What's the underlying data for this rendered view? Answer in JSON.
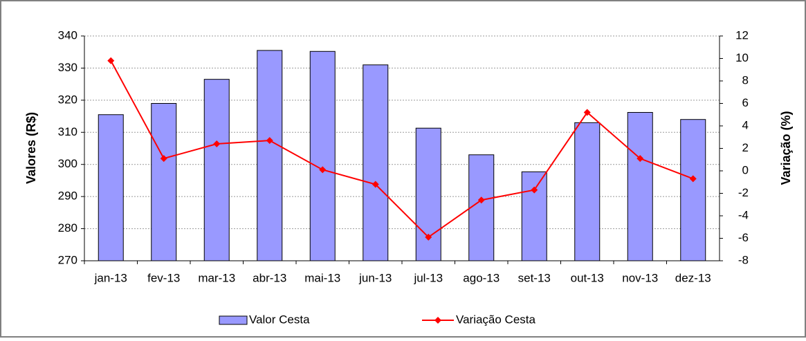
{
  "chart_data": {
    "type": "bar",
    "categories": [
      "jan-13",
      "fev-13",
      "mar-13",
      "abr-13",
      "mai-13",
      "jun-13",
      "jul-13",
      "ago-13",
      "set-13",
      "out-13",
      "nov-13",
      "dez-13"
    ],
    "series": [
      {
        "name": "Valor Cesta",
        "type": "bar",
        "color": "#9999ff",
        "values": [
          315.5,
          319,
          326.5,
          335.5,
          335.2,
          331,
          311.3,
          303,
          297.7,
          313,
          316.2,
          314
        ]
      },
      {
        "name": "Variação Cesta",
        "type": "line",
        "axis": "y2",
        "color": "#ff0000",
        "values": [
          9.8,
          1.1,
          2.4,
          2.7,
          0.1,
          -1.2,
          -5.9,
          -2.6,
          -1.7,
          5.2,
          1.1,
          -0.7
        ]
      }
    ],
    "y_label": "Valores (R$)",
    "y2_label": "Variação (%)",
    "ylim": [
      270,
      340
    ],
    "yticks": [
      270,
      280,
      290,
      300,
      310,
      320,
      330,
      340
    ],
    "y2lim": [
      -8,
      12
    ],
    "y2ticks": [
      -8,
      -6,
      -4,
      -2,
      0,
      2,
      4,
      6,
      8,
      10,
      12
    ],
    "grid": true,
    "legend": "bottom"
  }
}
